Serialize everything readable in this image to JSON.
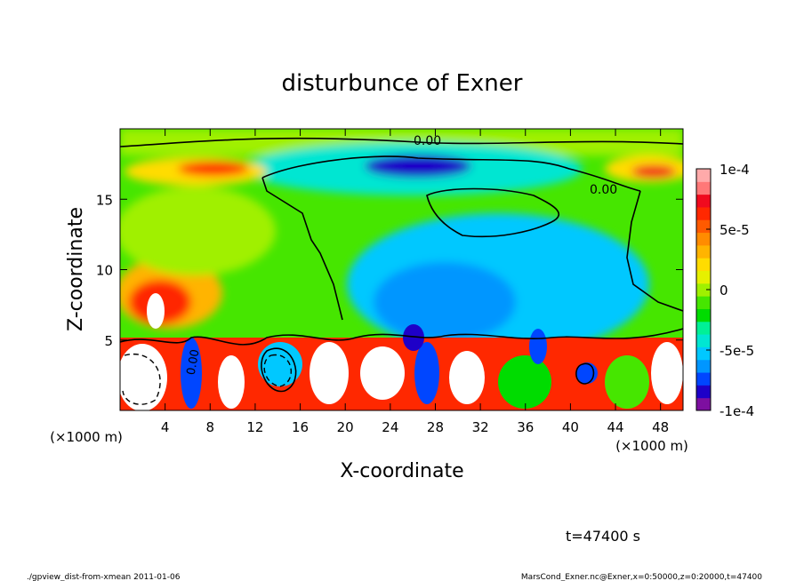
{
  "chart_data": {
    "type": "heatmap",
    "title": "disturbunce of Exner",
    "xlabel": "X-coordinate",
    "ylabel": "Z-coordinate",
    "x_unit": "(×1000 m)",
    "y_unit": "(×1000 m)",
    "xlim": [
      0,
      50
    ],
    "ylim": [
      0,
      20
    ],
    "x_ticks": [
      4,
      8,
      12,
      16,
      20,
      24,
      28,
      32,
      36,
      40,
      44,
      48
    ],
    "y_ticks": [
      5,
      10,
      15
    ],
    "colorbar": {
      "range": [
        -0.0001,
        0.0001
      ],
      "tick_values": [
        0.0001,
        5e-05,
        0,
        -5e-05,
        -0.0001
      ],
      "tick_labels": [
        "1e-4",
        "5e-5",
        "0",
        "-5e-5",
        "-1e-4"
      ],
      "colors": [
        "#7d0fa0",
        "#1e00c8",
        "#0046ff",
        "#0096ff",
        "#00c8ff",
        "#00e6d2",
        "#00f096",
        "#00dc00",
        "#46e600",
        "#a0f000",
        "#e6f000",
        "#ffdc00",
        "#ffb400",
        "#ff8c00",
        "#ff5a00",
        "#ff2800",
        "#f00a1e",
        "#ff7878",
        "#ffaaaa"
      ]
    },
    "contour_labels": [
      "0.00",
      "0.00",
      "0.00"
    ],
    "time_label": "t=47400 s",
    "footer_left": "./gpview_dist-from-xmean  2011-01-06",
    "footer_right": "MarsCond_Exner.nc@Exner,x=0:50000,z=0:20000,t=47400",
    "grid": false,
    "legend": "colorbar-right"
  }
}
